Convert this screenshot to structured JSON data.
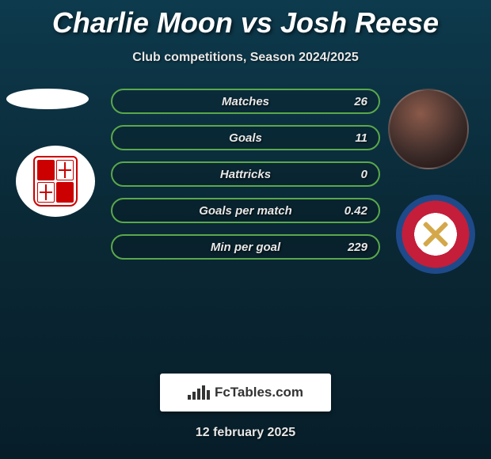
{
  "title": "Charlie Moon vs Josh Reese",
  "subtitle": "Club competitions, Season 2024/2025",
  "date": "12 february 2025",
  "brand": "FcTables.com",
  "colors": {
    "bar_border": "#5aa84a",
    "background_top": "#0d3a4d",
    "background_bottom": "#071e29",
    "crest_red": "#cc0000",
    "crest_right_red": "#c41e3a",
    "crest_right_blue": "#1e4a8a"
  },
  "stats": [
    {
      "label": "Matches",
      "value": "26"
    },
    {
      "label": "Goals",
      "value": "11"
    },
    {
      "label": "Hattricks",
      "value": "0"
    },
    {
      "label": "Goals per match",
      "value": "0.42"
    },
    {
      "label": "Min per goal",
      "value": "229"
    }
  ],
  "fct_icon_bars": [
    6,
    10,
    14,
    18,
    12
  ]
}
